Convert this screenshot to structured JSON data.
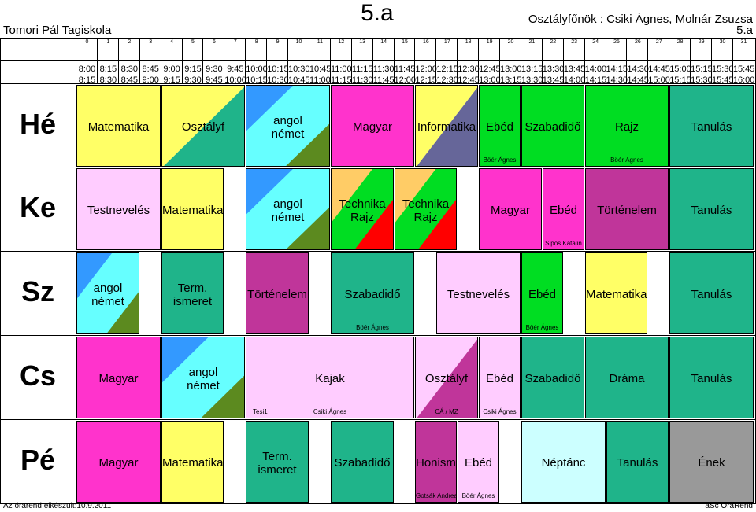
{
  "header": {
    "school": "Tomori Pál Tagiskola",
    "class": "5.a",
    "form_teachers": "Osztályfőnök : Csiki Ágnes, Molnár Zsuzsa",
    "class_small": "5.a"
  },
  "periods": [
    "0",
    "1",
    "2",
    "3",
    "4",
    "5",
    "6",
    "7",
    "8",
    "9",
    "10",
    "11",
    "12",
    "13",
    "14",
    "15",
    "16",
    "17",
    "18",
    "19",
    "20",
    "21",
    "22",
    "23",
    "24",
    "25",
    "26",
    "27",
    "28",
    "29",
    "30",
    "31"
  ],
  "times_start": [
    "8:00",
    "8:15",
    "8:30",
    "8:45",
    "9:00",
    "9:15",
    "9:30",
    "9:45",
    "10:00",
    "10:15",
    "10:30",
    "10:45",
    "11:00",
    "11:15",
    "11:30",
    "11:45",
    "12:00",
    "12:15",
    "12:30",
    "12:45",
    "13:00",
    "13:15",
    "13:30",
    "13:45",
    "14:00",
    "14:15",
    "14:30",
    "14:45",
    "15:00",
    "15:15",
    "15:30",
    "15:45"
  ],
  "times_end": [
    "8:15",
    "8:30",
    "8:45",
    "9:00",
    "9:15",
    "9:30",
    "9:45",
    "10:00",
    "10:15",
    "10:30",
    "10:45",
    "11:00",
    "11:15",
    "11:30",
    "11:45",
    "12:00",
    "12:15",
    "12:30",
    "12:45",
    "13:00",
    "13:15",
    "13:30",
    "13:45",
    "14:00",
    "14:15",
    "14:30",
    "14:45",
    "15:00",
    "15:15",
    "15:30",
    "15:45",
    "16:00"
  ],
  "colors": {
    "yellow": "#ffff66",
    "teal": "#1fb48a",
    "magenta": "#ff33cc",
    "slate": "#666699",
    "green": "#00dd22",
    "pink": "#ffccff",
    "orange": "#ffcc66",
    "red": "#ff0000",
    "plum": "#c0359a",
    "cyan": "#66ffff",
    "blue": "#3399ff",
    "olive": "#5c8a1f",
    "lightcyan": "#ccffff",
    "gray": "#999999"
  },
  "days": [
    {
      "name": "Hé",
      "lessons": [
        {
          "start": 0,
          "span": 4,
          "color": "yellow",
          "lines": [
            "Matematika"
          ]
        },
        {
          "start": 4,
          "span": 4,
          "split": [
            "yellow",
            "teal"
          ],
          "lines": [
            "Osztályf"
          ]
        },
        {
          "start": 8,
          "span": 4,
          "split4": [
            "blue",
            "cyan",
            "olive"
          ],
          "lines": [
            "angol",
            "német"
          ]
        },
        {
          "start": 12,
          "span": 4,
          "color": "magenta",
          "lines": [
            "Magyar"
          ]
        },
        {
          "start": 16,
          "span": 3,
          "split": [
            "yellow",
            "slate"
          ],
          "lines": [
            "Informatika"
          ]
        },
        {
          "start": 19,
          "span": 2,
          "color": "green",
          "lines": [
            "Ebéd"
          ],
          "teacher": "Böér Ágnes"
        },
        {
          "start": 21,
          "span": 3,
          "color": "green",
          "lines": [
            "Szabadidő"
          ]
        },
        {
          "start": 24,
          "span": 4,
          "color": "green",
          "lines": [
            "Rajz"
          ],
          "teacher": "Böér Ágnes"
        },
        {
          "start": 28,
          "span": 4,
          "color": "teal",
          "lines": [
            "Tanulás"
          ]
        }
      ]
    },
    {
      "name": "Ke",
      "lessons": [
        {
          "start": 0,
          "span": 4,
          "color": "pink",
          "lines": [
            "Testnevelés"
          ]
        },
        {
          "start": 4,
          "span": 3,
          "color": "yellow",
          "lines": [
            "Matematika"
          ]
        },
        {
          "start": 8,
          "span": 4,
          "split4": [
            "blue",
            "cyan",
            "olive"
          ],
          "lines": [
            "angol",
            "német"
          ]
        },
        {
          "start": 12,
          "span": 3,
          "split3": [
            "orange",
            "green",
            "red"
          ],
          "lines": [
            "Technika",
            "Rajz"
          ]
        },
        {
          "start": 15,
          "span": 3,
          "split3": [
            "orange",
            "green",
            "red"
          ],
          "lines": [
            "Technika",
            "Rajz"
          ]
        },
        {
          "start": 19,
          "span": 3,
          "color": "magenta",
          "lines": [
            "Magyar"
          ]
        },
        {
          "start": 22,
          "span": 2,
          "color": "magenta",
          "lines": [
            "Ebéd"
          ],
          "teacher": "Sipos Katalin"
        },
        {
          "start": 24,
          "span": 4,
          "color": "plum",
          "lines": [
            "Történelem"
          ]
        },
        {
          "start": 28,
          "span": 4,
          "color": "teal",
          "lines": [
            "Tanulás"
          ]
        }
      ]
    },
    {
      "name": "Sz",
      "lessons": [
        {
          "start": 0,
          "span": 3,
          "split4": [
            "blue",
            "cyan",
            "olive"
          ],
          "lines": [
            "angol",
            "német"
          ]
        },
        {
          "start": 4,
          "span": 3,
          "color": "teal",
          "lines": [
            "Term.",
            "ismeret"
          ]
        },
        {
          "start": 8,
          "span": 3,
          "color": "plum",
          "lines": [
            "Történelem"
          ]
        },
        {
          "start": 12,
          "span": 4,
          "color": "teal",
          "lines": [
            "Szabadidő"
          ],
          "teacher": "Böér Ágnes"
        },
        {
          "start": 17,
          "span": 4,
          "color": "pink",
          "lines": [
            "Testnevelés"
          ]
        },
        {
          "start": 21,
          "span": 2,
          "color": "green",
          "lines": [
            "Ebéd"
          ],
          "teacher": "Böér Ágnes"
        },
        {
          "start": 24,
          "span": 3,
          "color": "yellow",
          "lines": [
            "Matematika"
          ]
        },
        {
          "start": 28,
          "span": 4,
          "color": "teal",
          "lines": [
            "Tanulás"
          ]
        }
      ]
    },
    {
      "name": "Cs",
      "lessons": [
        {
          "start": 0,
          "span": 4,
          "color": "magenta",
          "lines": [
            "Magyar"
          ]
        },
        {
          "start": 4,
          "span": 4,
          "split4": [
            "blue",
            "cyan",
            "olive"
          ],
          "lines": [
            "angol",
            "német"
          ]
        },
        {
          "start": 8,
          "span": 8,
          "color": "pink",
          "lines": [
            "Kajak"
          ],
          "teacher_left": "Tesi1",
          "teacher": "Csiki Ágnes"
        },
        {
          "start": 16,
          "span": 3,
          "split": [
            "pink",
            "plum"
          ],
          "lines": [
            "Osztályf"
          ],
          "teacher": "CÁ / MZ"
        },
        {
          "start": 19,
          "span": 2,
          "color": "pink",
          "lines": [
            "Ebéd"
          ],
          "teacher": "Csiki Ágnes"
        },
        {
          "start": 21,
          "span": 3,
          "color": "teal",
          "lines": [
            "Szabadidő"
          ]
        },
        {
          "start": 24,
          "span": 4,
          "color": "teal",
          "lines": [
            "Dráma"
          ]
        },
        {
          "start": 28,
          "span": 4,
          "color": "teal",
          "lines": [
            "Tanulás"
          ]
        }
      ]
    },
    {
      "name": "Pé",
      "lessons": [
        {
          "start": 0,
          "span": 4,
          "color": "magenta",
          "lines": [
            "Magyar"
          ]
        },
        {
          "start": 4,
          "span": 3,
          "color": "yellow",
          "lines": [
            "Matematika"
          ]
        },
        {
          "start": 8,
          "span": 3,
          "color": "teal",
          "lines": [
            "Term.",
            "ismeret"
          ]
        },
        {
          "start": 12,
          "span": 3,
          "color": "teal",
          "lines": [
            "Szabadidő"
          ]
        },
        {
          "start": 16,
          "span": 2,
          "color": "plum",
          "lines": [
            "Honismer"
          ],
          "teacher": "Gotsák Andrea"
        },
        {
          "start": 18,
          "span": 2,
          "color": "pink",
          "lines": [
            "Ebéd"
          ],
          "teacher": "Böér Ágnes"
        },
        {
          "start": 21,
          "span": 4,
          "color": "lightcyan",
          "lines": [
            "Néptánc"
          ]
        },
        {
          "start": 25,
          "span": 3,
          "color": "teal",
          "lines": [
            "Tanulás"
          ]
        },
        {
          "start": 28,
          "span": 4,
          "color": "gray",
          "lines": [
            "Ének"
          ]
        }
      ]
    }
  ],
  "footer": {
    "created": "Az órarend elkészült:10.9.2011",
    "software": "aSc OraRend"
  }
}
